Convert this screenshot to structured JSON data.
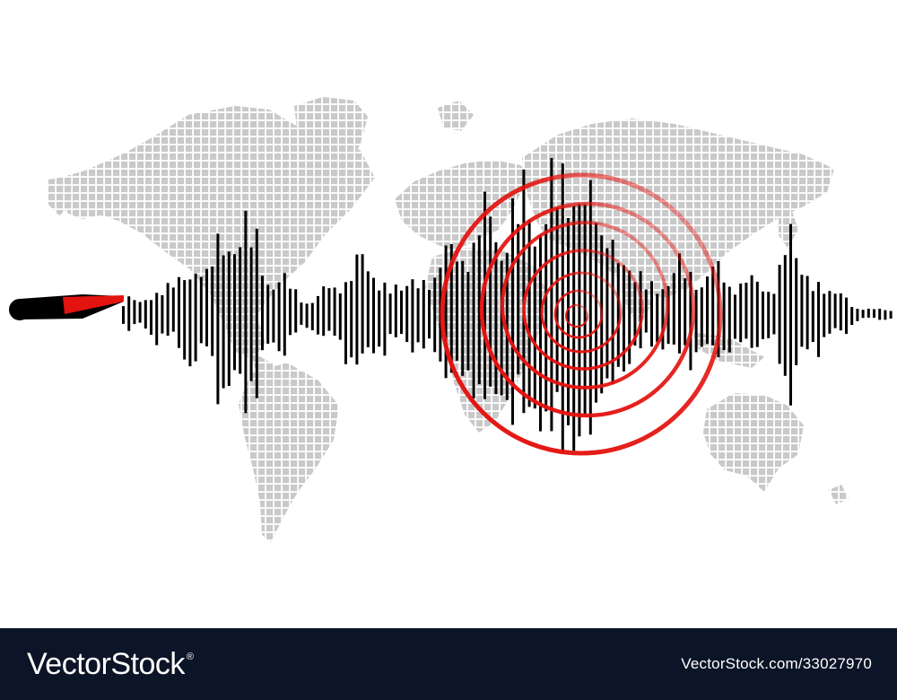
{
  "footer": {
    "brand": "VectorStock",
    "trademark": "®",
    "image_id": "VectorStock.com/33027970",
    "background": "#0c1427"
  },
  "colors": {
    "map_dots": "#c9c9c9",
    "waveform": "#000000",
    "epicenter": "#e3130f",
    "needle_body": "#000000",
    "needle_tip": "#e3130f"
  },
  "icons": [
    "world-map",
    "seismograph-needle",
    "seismic-waveform",
    "epicenter-rings"
  ]
}
